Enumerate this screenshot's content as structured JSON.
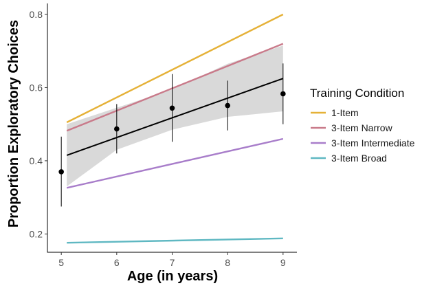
{
  "chart_data": {
    "type": "line",
    "xlabel": "Age (in years)",
    "ylabel": "Proportion Exploratory Choices",
    "xlim": [
      4.75,
      9.25
    ],
    "ylim": [
      0.15,
      0.83
    ],
    "x_ticks": [
      5,
      6,
      7,
      8,
      9
    ],
    "y_ticks": [
      0.2,
      0.4,
      0.6,
      0.8
    ],
    "grid": false,
    "legend_title": "Training Condition",
    "legend_position": "right",
    "series": [
      {
        "name": "1-Item",
        "color": "#e5b137",
        "x": [
          5.1,
          9
        ],
        "y": [
          0.505,
          0.8
        ]
      },
      {
        "name": "3-Item Narrow",
        "color": "#c97a8a",
        "x": [
          5.1,
          9
        ],
        "y": [
          0.482,
          0.72
        ]
      },
      {
        "name": "3-Item Intermediate",
        "color": "#a87dca",
        "x": [
          5.1,
          9
        ],
        "y": [
          0.326,
          0.46
        ]
      },
      {
        "name": "3-Item Broad",
        "color": "#5fb8c2",
        "x": [
          5.1,
          9
        ],
        "y": [
          0.176,
          0.188
        ]
      }
    ],
    "overall_fit": {
      "color": "#000000",
      "x": [
        5.1,
        9
      ],
      "y": [
        0.415,
        0.625
      ],
      "ci_band": {
        "color": "#d9d9d9",
        "x": [
          5.1,
          6,
          7,
          8,
          9
        ],
        "lower": [
          0.33,
          0.43,
          0.485,
          0.52,
          0.535
        ],
        "upper": [
          0.5,
          0.545,
          0.595,
          0.665,
          0.715
        ]
      }
    },
    "points": {
      "x": [
        5,
        6,
        7,
        8,
        9
      ],
      "y": [
        0.37,
        0.487,
        0.544,
        0.551,
        0.583
      ],
      "err_low": [
        0.275,
        0.42,
        0.452,
        0.483,
        0.5
      ],
      "err_high": [
        0.466,
        0.555,
        0.637,
        0.619,
        0.666
      ]
    }
  }
}
